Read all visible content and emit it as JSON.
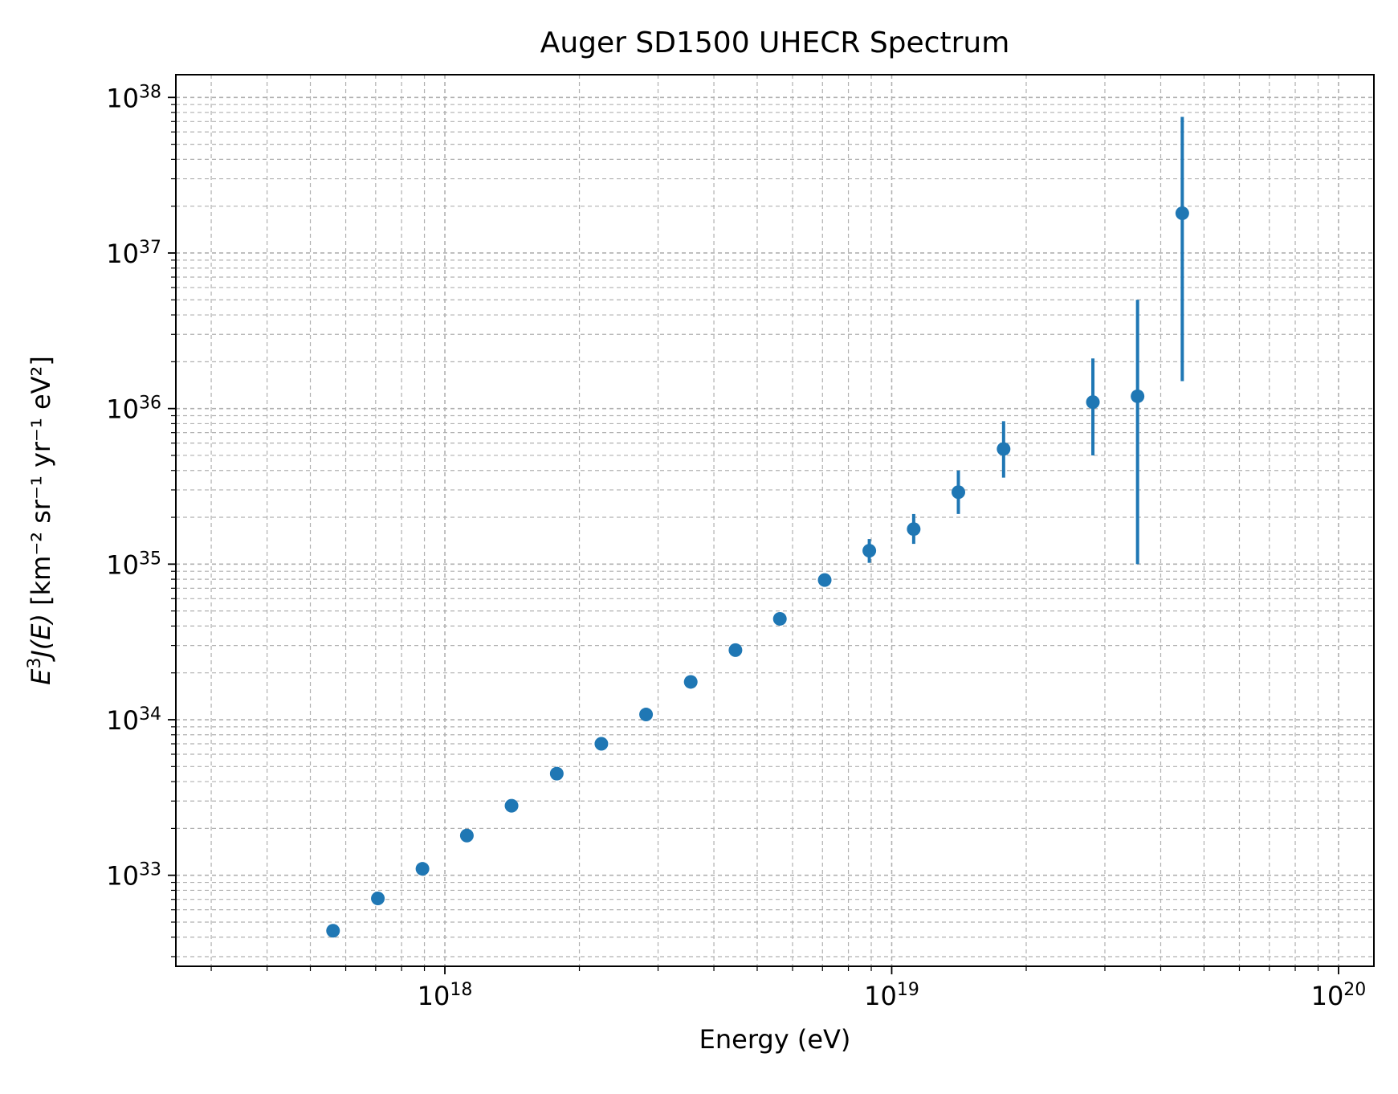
{
  "chart_data": {
    "type": "scatter",
    "title": "Auger SD1500 UHECR Spectrum",
    "xlabel": "Energy (eV)",
    "ylabel": {
      "prefix_italic_E": "E",
      "prefix_sup": "3",
      "prefix_italic_J": "J",
      "prefix_paren_open": "(",
      "prefix_italic_E2": "E",
      "prefix_paren_close": ")",
      "units": " [km⁻² sr⁻¹ yr⁻¹ eV²]"
    },
    "xscale": "log",
    "yscale": "log",
    "xlim": [
      2.5e+17,
      1.2e+20
    ],
    "ylim": [
      2.6e+32,
      1.4e+38
    ],
    "grid": true,
    "x_ticks": [
      {
        "base": "10",
        "exp": "18",
        "value": 1e+18
      },
      {
        "base": "10",
        "exp": "19",
        "value": 1e+19
      },
      {
        "base": "10",
        "exp": "20",
        "value": 1e+20
      }
    ],
    "y_ticks": [
      {
        "base": "10",
        "exp": "33",
        "value": 1e+33
      },
      {
        "base": "10",
        "exp": "34",
        "value": 1e+34
      },
      {
        "base": "10",
        "exp": "35",
        "value": 1e+35
      },
      {
        "base": "10",
        "exp": "36",
        "value": 1e+36
      },
      {
        "base": "10",
        "exp": "37",
        "value": 1e+37
      },
      {
        "base": "10",
        "exp": "38",
        "value": 1e+38
      }
    ],
    "series": [
      {
        "color": "#1f77b4",
        "points": [
          {
            "x": 5.62e+17,
            "y": 4.4e+32
          },
          {
            "x": 7.08e+17,
            "y": 7.1e+32
          },
          {
            "x": 8.91e+17,
            "y": 1.1e+33
          },
          {
            "x": 1.12e+18,
            "y": 1.8e+33
          },
          {
            "x": 1.41e+18,
            "y": 2.8e+33
          },
          {
            "x": 1.78e+18,
            "y": 4.5e+33
          },
          {
            "x": 2.24e+18,
            "y": 7e+33
          },
          {
            "x": 2.82e+18,
            "y": 1.08e+34
          },
          {
            "x": 3.55e+18,
            "y": 1.75e+34
          },
          {
            "x": 4.47e+18,
            "y": 2.8e+34
          },
          {
            "x": 5.62e+18,
            "y": 4.45e+34
          },
          {
            "x": 7.08e+18,
            "y": 7.9e+34
          },
          {
            "x": 8.91e+18,
            "y": 1.22e+35,
            "ylo": 1.02e+35,
            "yhi": 1.45e+35
          },
          {
            "x": 1.12e+19,
            "y": 1.68e+35,
            "ylo": 1.35e+35,
            "yhi": 2.1e+35
          },
          {
            "x": 1.41e+19,
            "y": 2.9e+35,
            "ylo": 2.1e+35,
            "yhi": 4e+35
          },
          {
            "x": 1.78e+19,
            "y": 5.5e+35,
            "ylo": 3.6e+35,
            "yhi": 8.3e+35
          },
          {
            "x": 2.82e+19,
            "y": 1.1e+36,
            "ylo": 5e+35,
            "yhi": 2.1e+36
          },
          {
            "x": 3.55e+19,
            "y": 1.2e+36,
            "ylo": 1e+35,
            "yhi": 5e+36
          },
          {
            "x": 4.47e+19,
            "y": 1.8e+37,
            "ylo": 1.5e+36,
            "yhi": 7.5e+37
          }
        ]
      }
    ]
  }
}
